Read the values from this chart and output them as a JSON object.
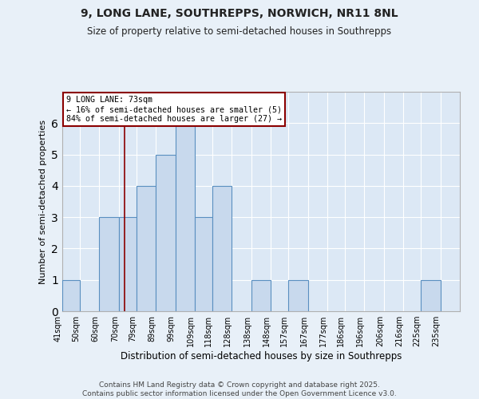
{
  "title_line1": "9, LONG LANE, SOUTHREPPS, NORWICH, NR11 8NL",
  "title_line2": "Size of property relative to semi-detached houses in Southrepps",
  "categories": [
    "41sqm",
    "50sqm",
    "60sqm",
    "70sqm",
    "79sqm",
    "89sqm",
    "99sqm",
    "109sqm",
    "118sqm",
    "128sqm",
    "138sqm",
    "148sqm",
    "157sqm",
    "167sqm",
    "177sqm",
    "186sqm",
    "196sqm",
    "206sqm",
    "216sqm",
    "225sqm",
    "235sqm"
  ],
  "values": [
    1,
    0,
    3,
    3,
    4,
    5,
    6,
    3,
    4,
    0,
    1,
    0,
    1,
    0,
    0,
    0,
    0,
    0,
    0,
    1,
    0
  ],
  "bar_color": "#c8d9ed",
  "bar_edge_color": "#5a8fc0",
  "xlabel": "Distribution of semi-detached houses by size in Southrepps",
  "ylabel": "Number of semi-detached properties",
  "ylim": [
    0,
    7
  ],
  "yticks": [
    0,
    1,
    2,
    3,
    4,
    5,
    6
  ],
  "property_line_x": 73,
  "property_line_color": "#8b0000",
  "annotation_text": "9 LONG LANE: 73sqm\n← 16% of semi-detached houses are smaller (5)\n84% of semi-detached houses are larger (27) →",
  "annotation_box_color": "white",
  "annotation_box_edge": "#8b0000",
  "footer_line1": "Contains HM Land Registry data © Crown copyright and database right 2025.",
  "footer_line2": "Contains public sector information licensed under the Open Government Licence v3.0.",
  "background_color": "#e8f0f8",
  "plot_bg_color": "#dce8f5",
  "bin_edges": [
    41,
    50,
    60,
    70,
    79,
    89,
    99,
    109,
    118,
    128,
    138,
    148,
    157,
    167,
    177,
    186,
    196,
    206,
    216,
    225,
    235,
    245
  ],
  "grid_color": "#ffffff",
  "spine_color": "#b0b0b0"
}
